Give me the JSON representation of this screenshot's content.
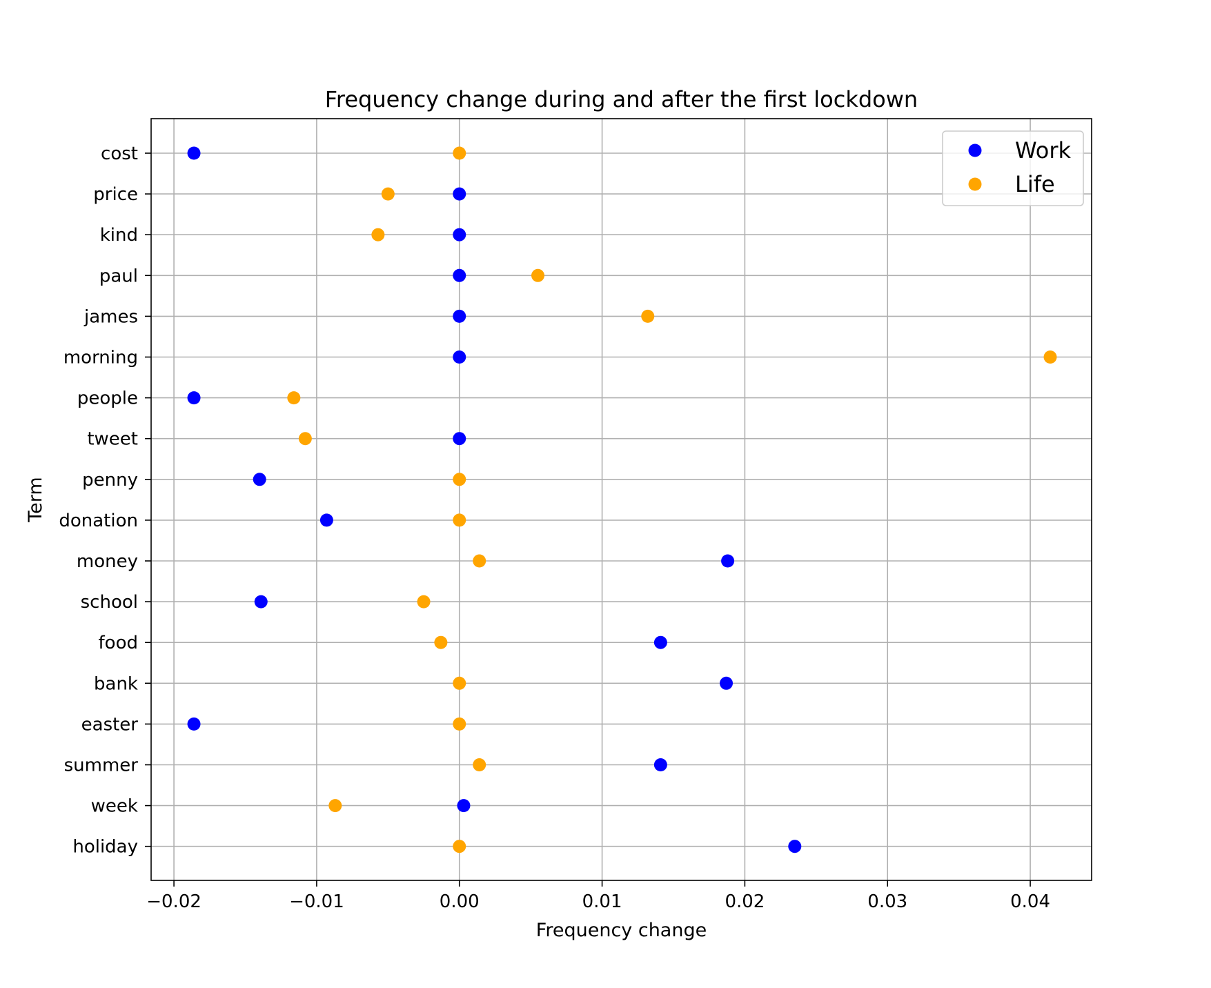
{
  "chart_data": {
    "type": "scatter",
    "title": "Frequency change during and after the first lockdown",
    "xlabel": "Frequency change",
    "ylabel": "Term",
    "xlim": [
      -0.0216,
      0.0443
    ],
    "xticks": [
      -0.02,
      -0.01,
      0.0,
      0.01,
      0.02,
      0.03,
      0.04
    ],
    "xtick_labels": [
      "−0.02",
      "−0.01",
      "0.00",
      "0.01",
      "0.02",
      "0.03",
      "0.04"
    ],
    "categories": [
      "cost",
      "price",
      "kind",
      "paul",
      "james",
      "morning",
      "people",
      "tweet",
      "penny",
      "donation",
      "money",
      "school",
      "food",
      "bank",
      "easter",
      "summer",
      "week",
      "holiday"
    ],
    "grid": true,
    "legend_position": "top-right",
    "series": [
      {
        "name": "Work",
        "color": "#0000ff",
        "values": [
          -0.0186,
          0.0,
          0.0,
          0.0,
          0.0,
          0.0,
          -0.0186,
          0.0,
          -0.014,
          -0.0093,
          0.0188,
          -0.0139,
          0.0141,
          0.0187,
          -0.0186,
          0.0141,
          0.0003,
          0.0235
        ]
      },
      {
        "name": "Life",
        "color": "#ffa500",
        "values": [
          0.0,
          -0.005,
          -0.0057,
          0.0055,
          0.0132,
          0.0414,
          -0.0116,
          -0.0108,
          0.0,
          0.0,
          0.0014,
          -0.0025,
          -0.0013,
          0.0,
          0.0,
          0.0014,
          -0.0087,
          0.0
        ]
      }
    ]
  }
}
